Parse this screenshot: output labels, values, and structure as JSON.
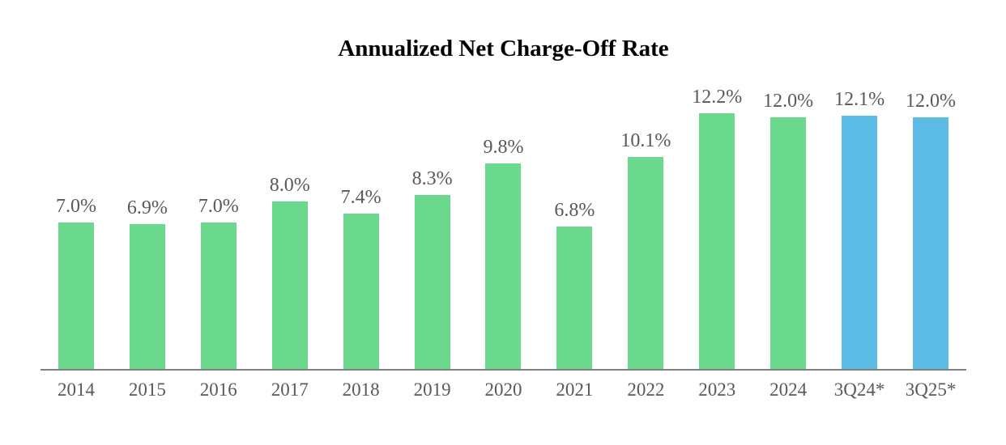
{
  "chart_data": {
    "type": "bar",
    "title": "Annualized Net Charge-Off Rate",
    "categories": [
      "2014",
      "2015",
      "2016",
      "2017",
      "2018",
      "2019",
      "2020",
      "2021",
      "2022",
      "2023",
      "2024",
      "3Q24*",
      "3Q25*"
    ],
    "values": [
      7.0,
      6.9,
      7.0,
      8.0,
      7.4,
      8.3,
      9.8,
      6.8,
      10.1,
      12.2,
      12.0,
      12.1,
      12.0
    ],
    "labels": [
      "7.0%",
      "6.9%",
      "7.0%",
      "8.0%",
      "7.4%",
      "8.3%",
      "9.8%",
      "6.8%",
      "10.1%",
      "12.2%",
      "12.0%",
      "12.1%",
      "12.0%"
    ],
    "bar_colors": [
      "green",
      "green",
      "green",
      "green",
      "green",
      "green",
      "green",
      "green",
      "green",
      "green",
      "green",
      "blue",
      "blue"
    ],
    "colors": {
      "green": "#6BD98D",
      "blue": "#5CBCE6"
    },
    "label_color": "#595959",
    "axis_line_color": "#808080",
    "title_color": "#000000",
    "xlabel": "",
    "ylabel": "",
    "ylim": [
      0,
      13.75
    ],
    "grid": false,
    "legend_position": "none"
  }
}
